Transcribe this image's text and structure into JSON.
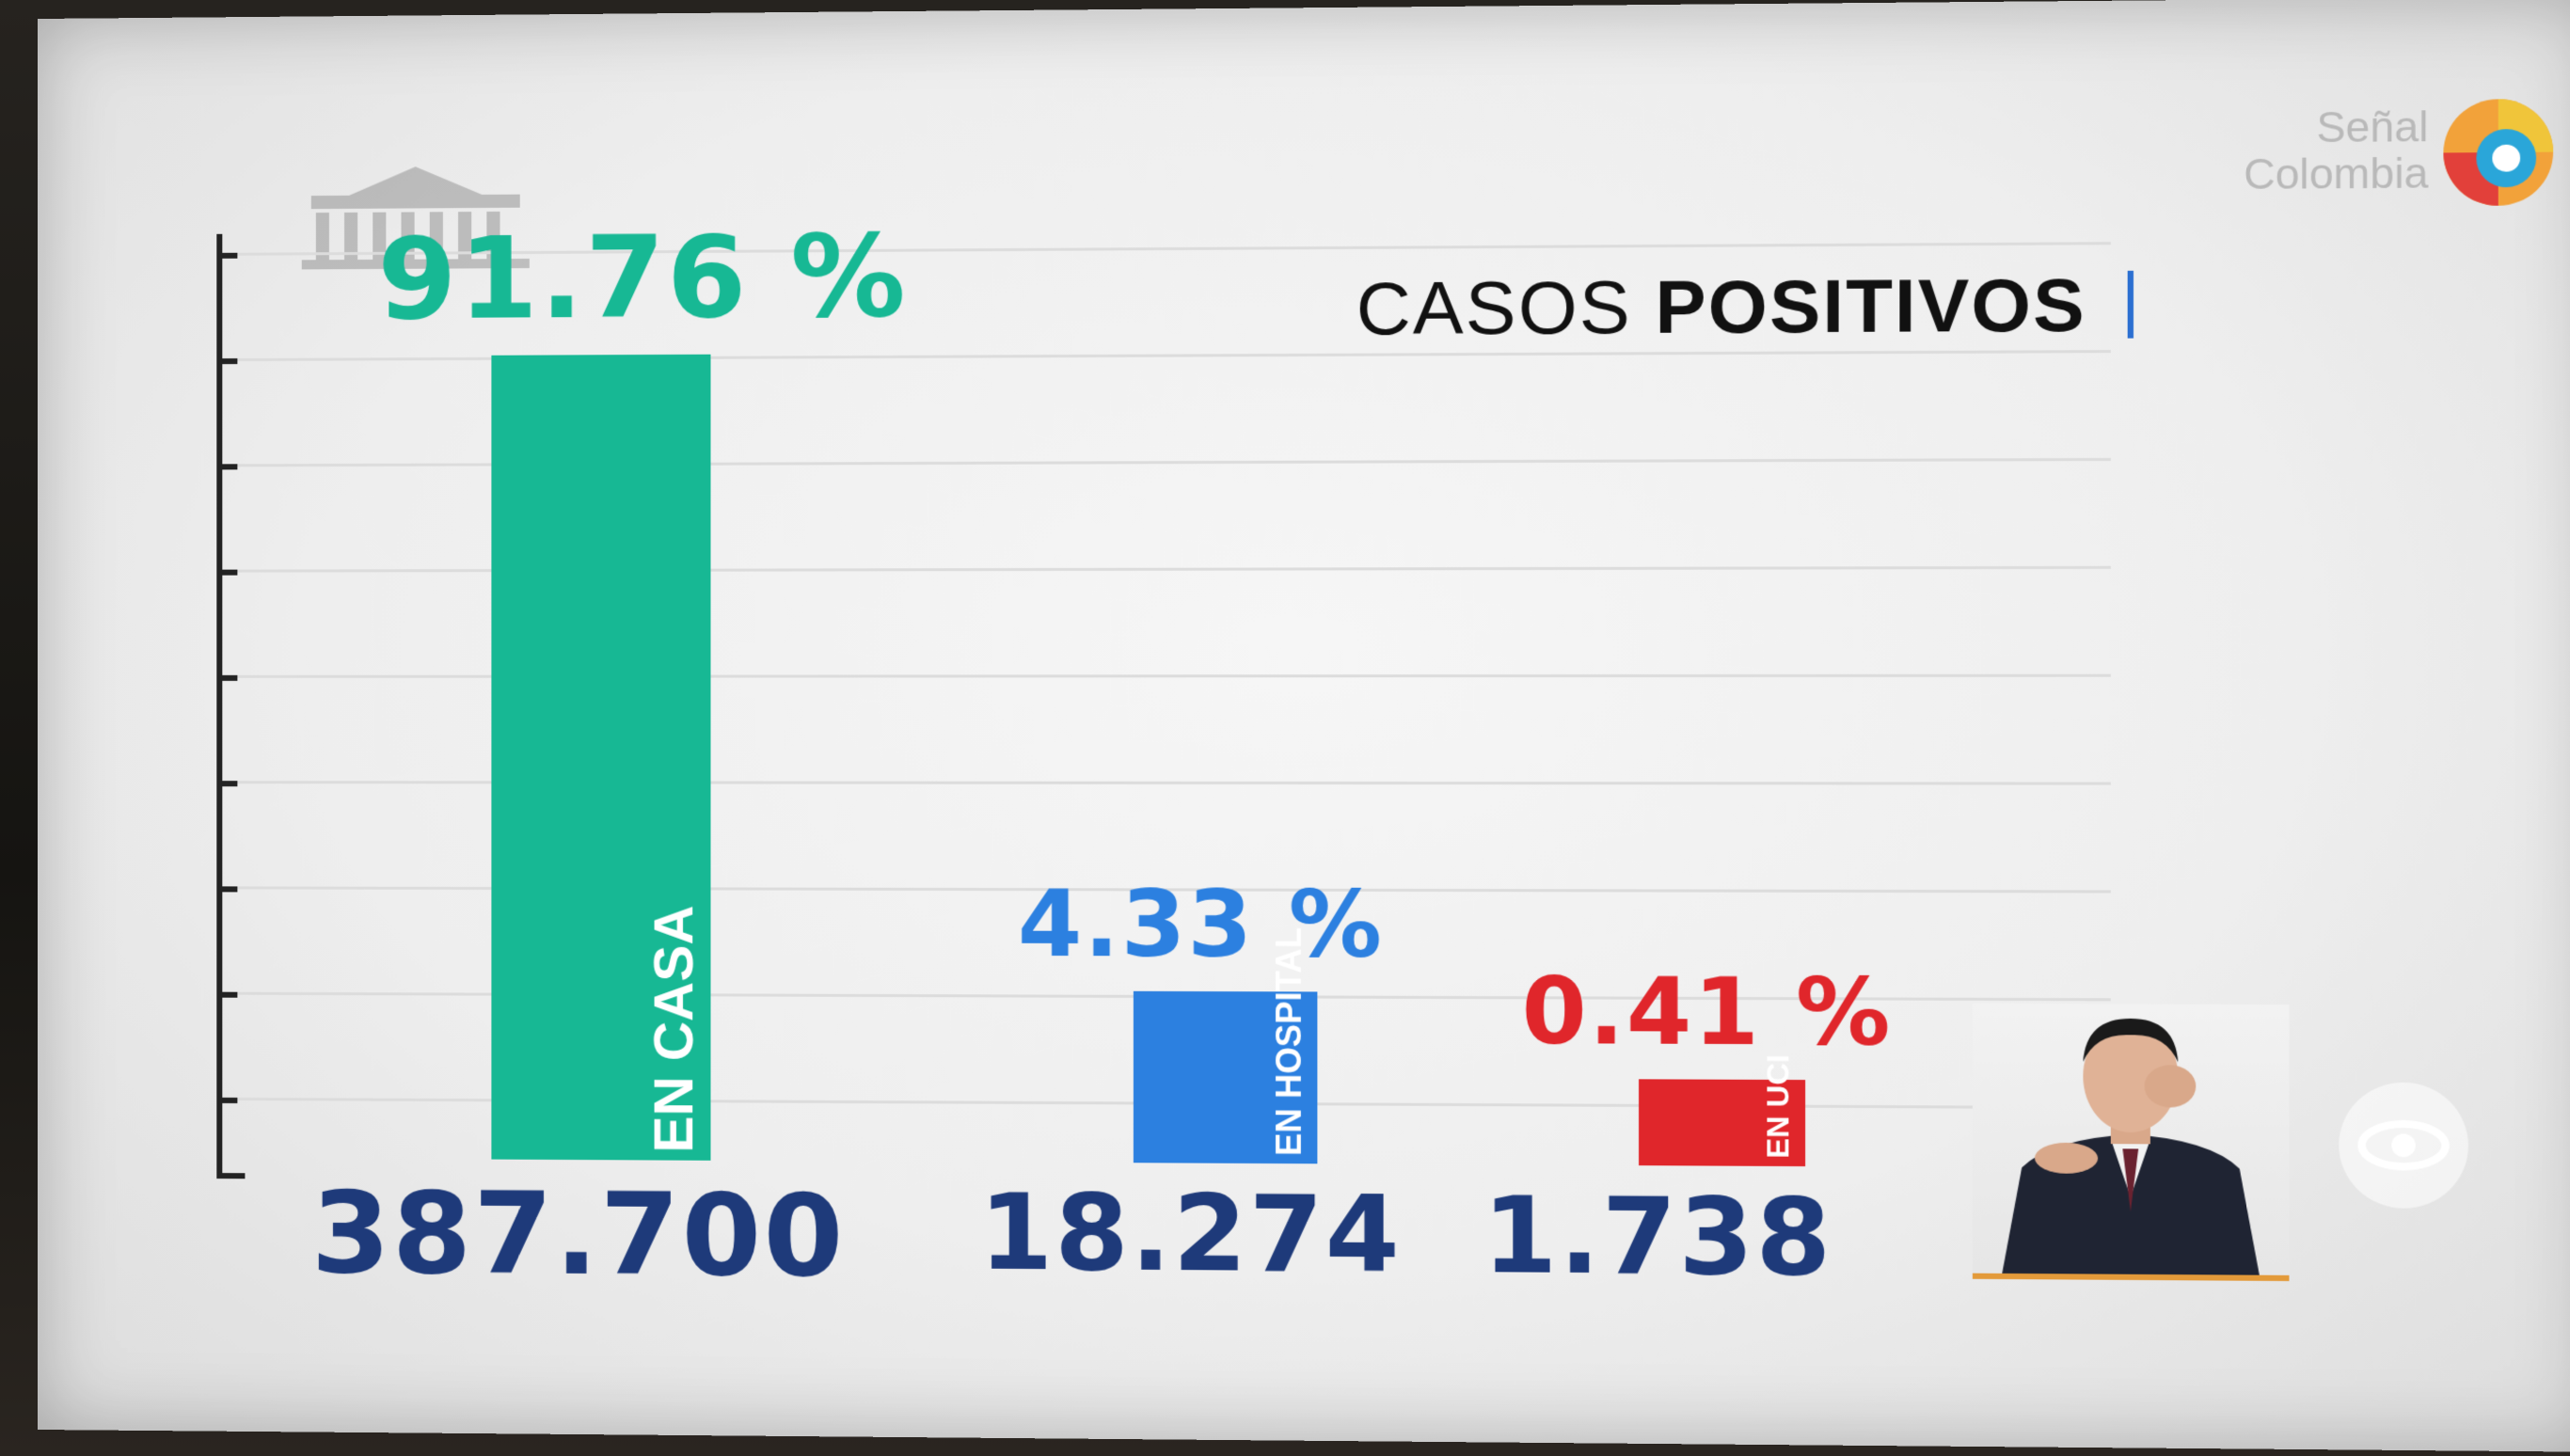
{
  "chart_data": {
    "type": "bar",
    "title_regular": "CASOS",
    "title_bold": "POSITIVOS",
    "categories": [
      "EN CASA",
      "EN HOSPITAL",
      "EN UCI"
    ],
    "values": [
      387700,
      18274,
      1738
    ],
    "value_labels": [
      "387.700",
      "18.274",
      "1.738"
    ],
    "percent_labels": [
      "91.76 %",
      "4.33 %",
      "0.41 %"
    ],
    "colors": [
      "#17b894",
      "#2c80e0",
      "#e0262b"
    ],
    "grid": true
  },
  "broadcaster": {
    "logo_line1": "Señal",
    "logo_line2": "Colombia"
  }
}
